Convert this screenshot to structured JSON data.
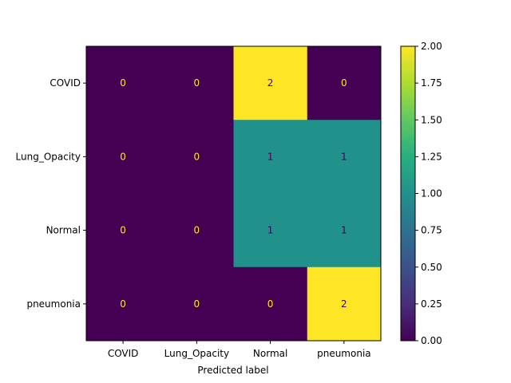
{
  "chart_data": {
    "type": "heatmap",
    "title": "",
    "xlabel": "Predicted label",
    "ylabel": "",
    "x_categories": [
      "COVID",
      "Lung_Opacity",
      "Normal",
      "pneumonia"
    ],
    "y_categories": [
      "COVID",
      "Lung_Opacity",
      "Normal",
      "pneumonia"
    ],
    "values": [
      [
        0,
        0,
        2,
        0
      ],
      [
        0,
        0,
        1,
        1
      ],
      [
        0,
        0,
        1,
        1
      ],
      [
        0,
        0,
        0,
        2
      ]
    ],
    "colormap": "viridis",
    "colorbar": {
      "range": [
        0,
        2
      ],
      "ticks": [
        "0.00",
        "0.25",
        "0.50",
        "0.75",
        "1.00",
        "1.25",
        "1.50",
        "1.75",
        "2.00"
      ]
    },
    "colors": {
      "low": "#440154",
      "mid": "#21918c",
      "high": "#fde725",
      "text_on_dark": "#fde725",
      "text_on_light": "#440154"
    },
    "grid": false
  }
}
